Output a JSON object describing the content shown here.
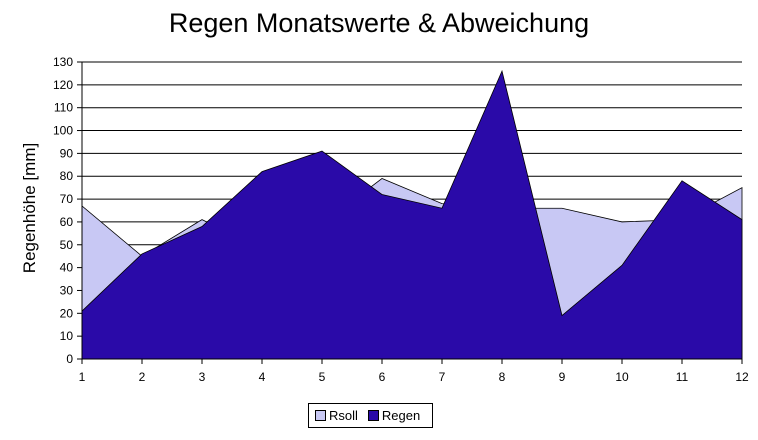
{
  "chart_data": {
    "type": "area",
    "title": "Regen Monatswerte & Abweichung",
    "xlabel": "",
    "ylabel": "Regenhöhe [mm]",
    "categories": [
      "1",
      "2",
      "3",
      "4",
      "5",
      "6",
      "7",
      "8",
      "9",
      "10",
      "11",
      "12"
    ],
    "ylim": [
      0,
      130
    ],
    "yticks": [
      0,
      10,
      20,
      30,
      40,
      50,
      60,
      70,
      80,
      90,
      100,
      110,
      120,
      130
    ],
    "grid": true,
    "legend_position": "bottom",
    "series": [
      {
        "name": "Rsoll",
        "values": [
          67,
          45,
          61,
          48,
          59,
          79,
          68,
          66,
          66,
          60,
          61,
          75
        ],
        "color": "#c8c8f4"
      },
      {
        "name": "Regen",
        "values": [
          21,
          46,
          58,
          82,
          91,
          72,
          66,
          126,
          19,
          41,
          78,
          61
        ],
        "color": "#2a0aa8"
      }
    ]
  }
}
